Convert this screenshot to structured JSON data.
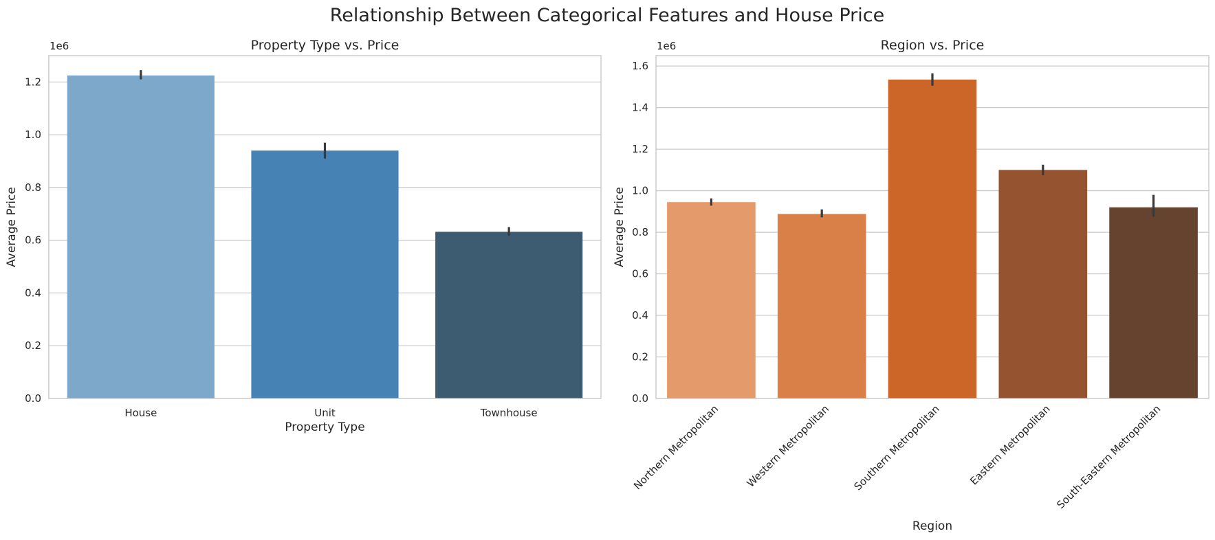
{
  "figure_title": "Relationship Between Categorical Features and House Price",
  "chart_data": [
    {
      "type": "bar",
      "title": "Property Type vs. Price",
      "xlabel": "Property Type",
      "ylabel": "Average Price",
      "offset_label": "1e6",
      "categories": [
        "House",
        "Unit",
        "Townhouse"
      ],
      "values": [
        1.225,
        0.94,
        0.632
      ],
      "error_low": [
        1.21,
        0.91,
        0.617
      ],
      "error_high": [
        1.245,
        0.97,
        0.65
      ],
      "colors": [
        "#7ea8c9",
        "#4682b4",
        "#3d5c71"
      ],
      "ylim": [
        0,
        1.3
      ],
      "yticks": [
        0.0,
        0.2,
        0.4,
        0.6,
        0.8,
        1.0,
        1.2
      ],
      "ytick_labels": [
        "0.0",
        "0.2",
        "0.4",
        "0.6",
        "0.8",
        "1.0",
        "1.2"
      ],
      "grid": true,
      "xtick_rotation": 0
    },
    {
      "type": "bar",
      "title": "Region vs. Price",
      "xlabel": "Region",
      "ylabel": "Average Price",
      "offset_label": "1e6",
      "categories": [
        "Northern Metropolitan",
        "Western Metropolitan",
        "Southern Metropolitan",
        "Eastern Metropolitan",
        "South-Eastern Metropolitan"
      ],
      "values": [
        0.945,
        0.888,
        1.535,
        1.1,
        0.92
      ],
      "error_low": [
        0.928,
        0.872,
        1.505,
        1.075,
        0.875
      ],
      "error_high": [
        0.963,
        0.91,
        1.565,
        1.125,
        0.98
      ],
      "colors": [
        "#e49a6b",
        "#d98049",
        "#cb6528",
        "#95542f",
        "#66432f"
      ],
      "ylim": [
        0,
        1.65
      ],
      "yticks": [
        0.0,
        0.2,
        0.4,
        0.6,
        0.8,
        1.0,
        1.2,
        1.4,
        1.6
      ],
      "ytick_labels": [
        "0.0",
        "0.2",
        "0.4",
        "0.6",
        "0.8",
        "1.0",
        "1.2",
        "1.4",
        "1.6"
      ],
      "grid": true,
      "xtick_rotation": -45
    }
  ]
}
